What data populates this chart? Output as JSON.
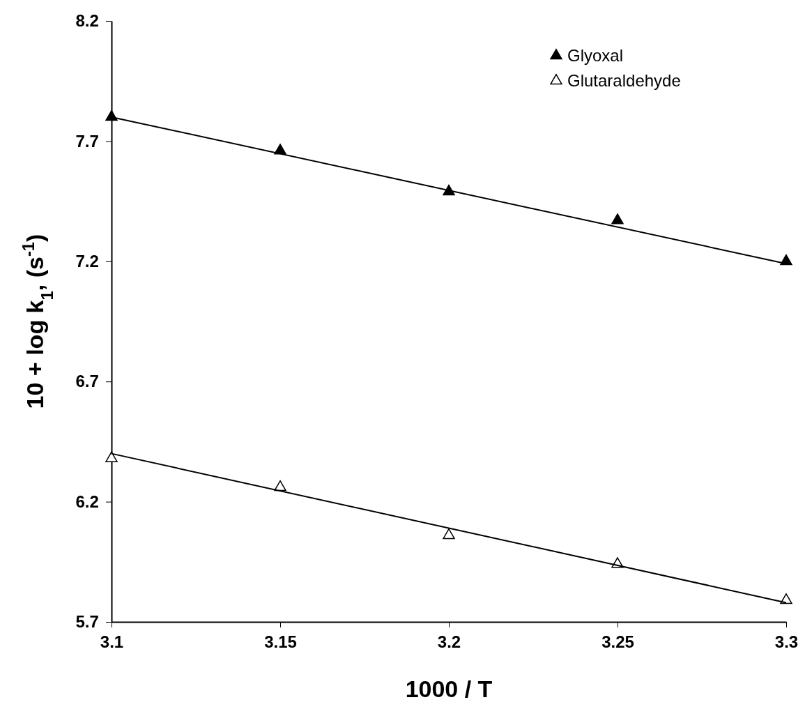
{
  "chart_data": {
    "type": "scatter",
    "xlabel": "1000 / T",
    "ylabel": "10 + log k$_{1}$, (s$^{-1}$)",
    "xlim": [
      3.1,
      3.3
    ],
    "xticks": [
      3.1,
      3.15,
      3.2,
      3.25,
      3.3
    ],
    "ylim": [
      5.7,
      8.2
    ],
    "yticks": [
      5.7,
      6.2,
      6.7,
      7.2,
      7.7,
      8.2
    ],
    "grid": false,
    "legend": "top right",
    "marker": "triangle",
    "series": [
      {
        "name": "Glyoxal",
        "color": "#000000",
        "x": [
          3.1,
          3.15,
          3.2,
          3.25,
          3.3
        ],
        "values": [
          7.8,
          7.66,
          7.49,
          7.37,
          7.2
        ]
      },
      {
        "name": "Glutaraldehyde",
        "color": "#000000",
        "x": [
          3.1,
          3.15,
          3.2,
          3.25,
          3.3
        ],
        "values": [
          6.38,
          6.26,
          6.06,
          5.94,
          5.79
        ]
      },
      {
        "type": "line",
        "color": "#000000",
        "marker": "none",
        "x": [
          3.1,
          3.3
        ],
        "values": [
          7.8,
          7.19
        ]
      },
      {
        "type": "line",
        "color": "#000000",
        "marker": "none",
        "x": [
          3.1,
          3.3
        ],
        "values": [
          6.4,
          5.78
        ]
      }
    ]
  }
}
